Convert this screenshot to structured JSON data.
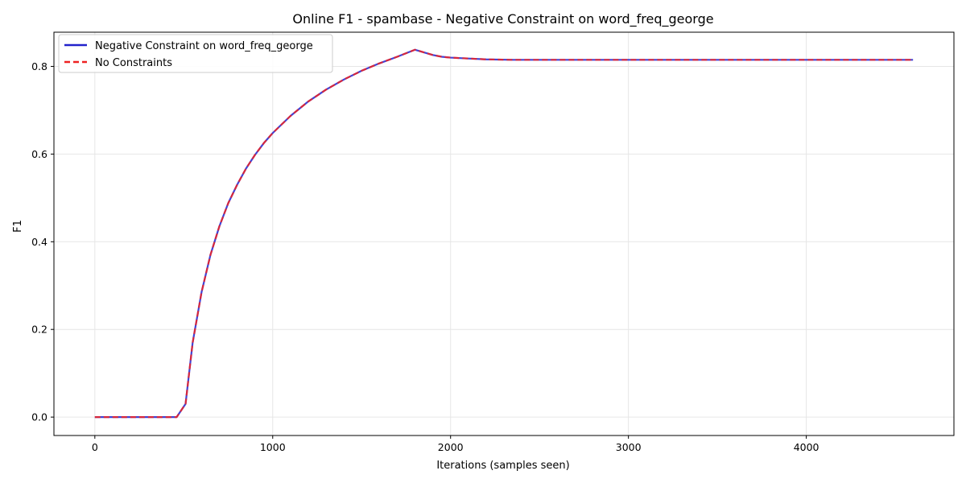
{
  "chart_data": {
    "type": "line",
    "title": "Online F1 - spambase - Negative Constraint on word_freq_george",
    "xlabel": "Iterations (samples seen)",
    "ylabel": "F1",
    "xlim": [
      -230,
      4830
    ],
    "ylim": [
      -0.042,
      0.878
    ],
    "xticks": [
      0,
      1000,
      2000,
      3000,
      4000
    ],
    "xtick_labels": [
      "0",
      "1000",
      "2000",
      "3000",
      "4000"
    ],
    "yticks": [
      0.0,
      0.2,
      0.4,
      0.6,
      0.8
    ],
    "ytick_labels": [
      "0.0",
      "0.2",
      "0.4",
      "0.6",
      "0.8"
    ],
    "grid": true,
    "legend_position": "top-left",
    "x": [
      0,
      100,
      200,
      300,
      400,
      460,
      510,
      550,
      600,
      650,
      700,
      750,
      800,
      850,
      900,
      950,
      1000,
      1100,
      1200,
      1300,
      1400,
      1500,
      1600,
      1700,
      1800,
      1850,
      1900,
      1950,
      2000,
      2100,
      2200,
      2350,
      2500,
      3000,
      3500,
      4000,
      4600
    ],
    "series": [
      {
        "name": "Negative Constraint on word_freq_george",
        "color": "#2222cc",
        "style": "solid",
        "values": [
          0,
          0,
          0,
          0,
          0,
          0,
          0.03,
          0.17,
          0.285,
          0.37,
          0.435,
          0.488,
          0.53,
          0.567,
          0.598,
          0.625,
          0.648,
          0.687,
          0.72,
          0.747,
          0.77,
          0.79,
          0.807,
          0.822,
          0.838,
          0.832,
          0.826,
          0.822,
          0.82,
          0.818,
          0.816,
          0.815,
          0.815,
          0.815,
          0.815,
          0.815,
          0.815
        ]
      },
      {
        "name": "No Constraints",
        "color": "#ee2222",
        "style": "dashed",
        "values": [
          0,
          0,
          0,
          0,
          0,
          0,
          0.03,
          0.17,
          0.285,
          0.37,
          0.435,
          0.488,
          0.53,
          0.567,
          0.598,
          0.625,
          0.648,
          0.687,
          0.72,
          0.747,
          0.77,
          0.79,
          0.807,
          0.822,
          0.838,
          0.832,
          0.826,
          0.822,
          0.82,
          0.818,
          0.816,
          0.815,
          0.815,
          0.815,
          0.815,
          0.815,
          0.815
        ]
      }
    ]
  }
}
